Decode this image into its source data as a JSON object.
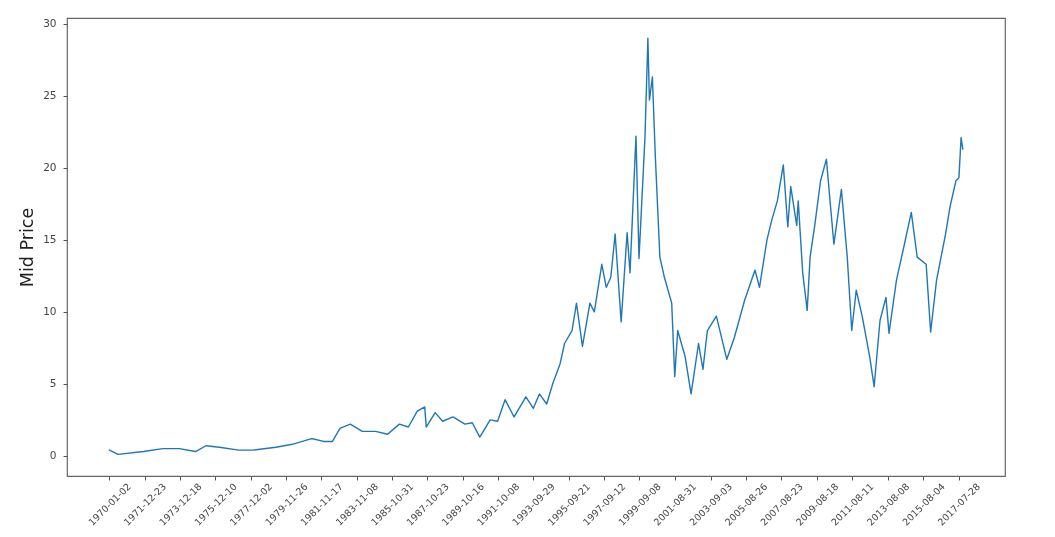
{
  "chart_data": {
    "type": "line",
    "ylabel": "Mid Price",
    "x": [
      "1970-01-02",
      "1970-07",
      "1971-12",
      "1973-01",
      "1973-12",
      "1974-11",
      "1975-06",
      "1976-03",
      "1977-04",
      "1978-02",
      "1979-05",
      "1980-04",
      "1981-05",
      "1982-01",
      "1982-07",
      "1982-12",
      "1983-07",
      "1984-03",
      "1984-12",
      "1985-08",
      "1986-04",
      "1986-10",
      "1987-04",
      "1987-09",
      "1987-10",
      "1988-04",
      "1988-09",
      "1989-04",
      "1989-12",
      "1990-05",
      "1990-10",
      "1991-05",
      "1991-10",
      "1992-03",
      "1992-09",
      "1993-05",
      "1993-10",
      "1994-02",
      "1994-07",
      "1994-11",
      "1995-04",
      "1995-07",
      "1995-12",
      "1996-03",
      "1996-07",
      "1996-12",
      "1997-03",
      "1997-08",
      "1997-11",
      "1998-02",
      "1998-05",
      "1998-09",
      "1999-01",
      "1999-03",
      "1999-07",
      "1999-09",
      "2000-01",
      "2000-03",
      "2000-04",
      "2000-06",
      "2000-08",
      "2000-11",
      "2001-02",
      "2001-07",
      "2001-09",
      "2001-11",
      "2002-04",
      "2002-08",
      "2003-01",
      "2003-04",
      "2003-07",
      "2004-01",
      "2004-08",
      "2005-01",
      "2005-08",
      "2006-03",
      "2006-06",
      "2006-11",
      "2007-02",
      "2007-06",
      "2007-10",
      "2008-01",
      "2008-03",
      "2008-07",
      "2008-08",
      "2008-11",
      "2009-02",
      "2009-04",
      "2009-07",
      "2009-11",
      "2010-03",
      "2010-05",
      "2010-08",
      "2011-01",
      "2011-05",
      "2011-08",
      "2011-11",
      "2012-03",
      "2012-08",
      "2012-11",
      "2013-03",
      "2013-07",
      "2013-09",
      "2014-02",
      "2014-07",
      "2014-12",
      "2015-04",
      "2015-10",
      "2016-01",
      "2016-05",
      "2016-11",
      "2017-02",
      "2017-06",
      "2017-08",
      "2017-09-15",
      "2017-10-20"
    ],
    "series": [
      {
        "color": "#1f77b4",
        "values": [
          0.4,
          0.1,
          0.3,
          0.5,
          0.5,
          0.3,
          0.7,
          0.6,
          0.4,
          0.4,
          0.6,
          0.8,
          1.2,
          1.0,
          1.0,
          1.9,
          2.2,
          1.7,
          1.7,
          1.5,
          2.2,
          2.0,
          3.1,
          3.4,
          2.0,
          3.0,
          2.4,
          2.7,
          2.2,
          2.3,
          1.3,
          2.5,
          2.4,
          3.9,
          2.7,
          4.1,
          3.3,
          4.3,
          3.6,
          5.0,
          6.4,
          7.8,
          8.7,
          10.6,
          7.6,
          10.6,
          10.0,
          13.3,
          11.7,
          12.4,
          15.4,
          9.3,
          15.5,
          12.7,
          22.2,
          13.7,
          22.1,
          29.0,
          24.7,
          26.3,
          20.7,
          13.8,
          12.4,
          10.6,
          5.5,
          8.7,
          6.9,
          4.3,
          7.8,
          6.0,
          8.7,
          9.7,
          6.7,
          8.2,
          10.8,
          12.9,
          11.7,
          15.0,
          16.3,
          17.7,
          20.2,
          15.9,
          18.7,
          16.0,
          17.7,
          12.7,
          10.1,
          13.8,
          15.9,
          19.1,
          20.6,
          18.2,
          14.7,
          18.5,
          13.8,
          8.7,
          11.5,
          9.7,
          6.9,
          4.8,
          9.4,
          11.0,
          8.5,
          12.2,
          14.5,
          16.9,
          13.8,
          13.3,
          8.6,
          12.2,
          15.4,
          17.3,
          19.1,
          19.3,
          22.1,
          21.3
        ]
      }
    ],
    "xlim": [
      "1967-08-19",
      "2020-03-01"
    ],
    "xticks": [
      "1970-01-02",
      "1971-12-23",
      "1973-12-18",
      "1975-12-10",
      "1977-12-02",
      "1979-11-26",
      "1981-11-17",
      "1983-11-08",
      "1985-10-31",
      "1987-10-23",
      "1989-10-16",
      "1991-10-08",
      "1993-09-29",
      "1995-09-21",
      "1997-09-12",
      "1999-09-08",
      "2001-08-31",
      "2003-09-03",
      "2005-08-26",
      "2007-08-23",
      "2009-08-18",
      "2011-08-11",
      "2013-08-08",
      "2015-08-04",
      "2017-07-28"
    ],
    "ylim": [
      -1.4,
      30.4
    ],
    "yticks": [
      0,
      5,
      10,
      15,
      20,
      25,
      30
    ]
  }
}
